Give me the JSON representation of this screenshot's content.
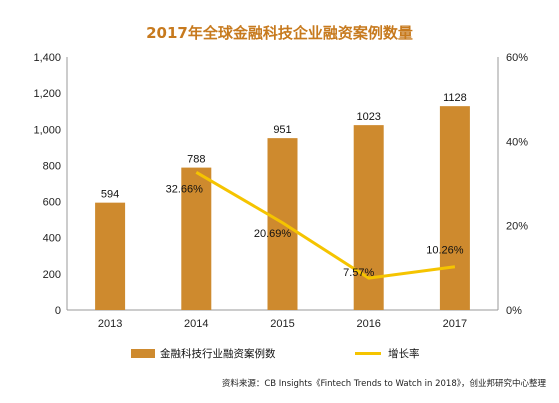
{
  "colors": {
    "bar": "#CE8A2E",
    "line": "#F5C400",
    "title": "#C77A1E",
    "axis": "#999999",
    "grid": "#D9D9D9"
  },
  "chart_data": {
    "type": "bar",
    "title": "2017年全球金融科技企业融资案例数量",
    "categories": [
      "2013",
      "2014",
      "2015",
      "2016",
      "2017"
    ],
    "series": [
      {
        "name": "金融科技行业融资案例数",
        "type": "bar",
        "axis": "left",
        "values": [
          594,
          788,
          951,
          1023,
          1128
        ],
        "labels": [
          "594",
          "788",
          "951",
          "1023",
          "1128"
        ]
      },
      {
        "name": "增长率",
        "type": "line",
        "axis": "right",
        "values": [
          null,
          32.66,
          20.69,
          7.57,
          10.26
        ],
        "labels": [
          "",
          "32.66%",
          "20.69%",
          "7.57%",
          "10.26%"
        ]
      }
    ],
    "y_left": {
      "min": 0,
      "max": 1400,
      "ticks": [
        "0",
        "200",
        "400",
        "600",
        "800",
        "1,000",
        "1,200",
        "1,400"
      ]
    },
    "y_right": {
      "min": 0,
      "max": 60,
      "ticks": [
        "0%",
        "20%",
        "40%",
        "60%"
      ]
    },
    "grid": false,
    "legend": "bottom",
    "source": "资料来源：CB Insights《Fintech Trends to Watch in 2018》，创业邦研究中心整理"
  }
}
